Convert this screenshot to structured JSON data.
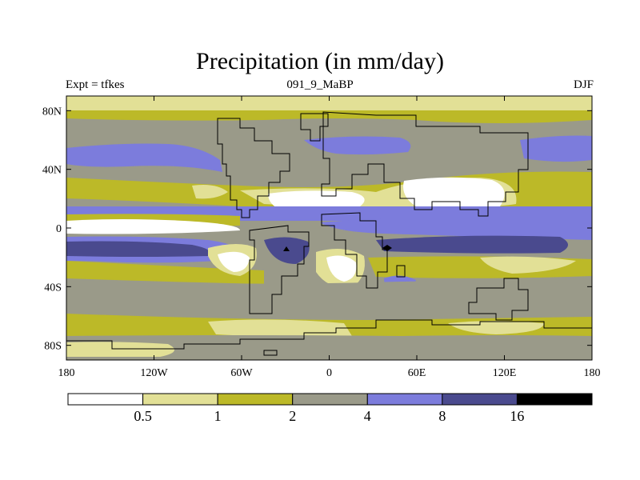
{
  "chart_data": {
    "type": "heatmap",
    "title": "Precipitation (in mm/day)",
    "subtitle_left": "Expt = tfkes",
    "subtitle_center": "091_9_MaBP",
    "subtitle_right": "DJF",
    "x_ticks": [
      {
        "value": -180,
        "label": "180"
      },
      {
        "value": -120,
        "label": "120W"
      },
      {
        "value": -60,
        "label": "60W"
      },
      {
        "value": 0,
        "label": "0"
      },
      {
        "value": 60,
        "label": "60E"
      },
      {
        "value": 120,
        "label": "120E"
      },
      {
        "value": 180,
        "label": "180"
      }
    ],
    "y_ticks": [
      {
        "value": 80,
        "label": "80N"
      },
      {
        "value": 40,
        "label": "40N"
      },
      {
        "value": 0,
        "label": "0"
      },
      {
        "value": -40,
        "label": "40S"
      },
      {
        "value": -80,
        "label": "80S"
      }
    ],
    "xlim": [
      -180,
      180
    ],
    "ylim": [
      -90,
      90
    ],
    "levels": [
      {
        "label": "0.5",
        "value": 0.5
      },
      {
        "label": "1",
        "value": 1
      },
      {
        "label": "2",
        "value": 2
      },
      {
        "label": "4",
        "value": 4
      },
      {
        "label": "8",
        "value": 8
      },
      {
        "label": "16",
        "value": 16
      }
    ],
    "colors": [
      "#ffffff",
      "#e2e096",
      "#bcb928",
      "#9a9a89",
      "#7c7cdc",
      "#4a4a8e",
      "#000000"
    ],
    "legend_position": "bottom"
  }
}
